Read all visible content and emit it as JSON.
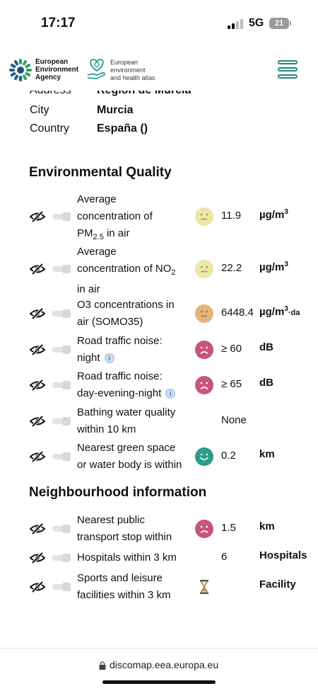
{
  "status_bar": {
    "time": "17:17",
    "network": "5G",
    "battery": "21"
  },
  "header": {
    "eea_logo_text": [
      "European",
      "Environment",
      "Agency"
    ],
    "atlas_logo_text": [
      "European",
      "environment",
      "and health atlas"
    ],
    "menu_icon": "hamburger-menu-icon"
  },
  "address": [
    {
      "label": "Address",
      "value": "Región de Murcia"
    },
    {
      "label": "City",
      "value": "Murcia"
    },
    {
      "label": "Country",
      "value": "España ()"
    }
  ],
  "sections": {
    "environmental": "Environmental Quality",
    "neighbourhood": "Neighbourhood information"
  },
  "environmental_rows": [
    {
      "name_lines": [
        "Average",
        "concentration of",
        "PM"
      ],
      "name_sub": "2.5",
      "name_tail": " in air",
      "face": "neutral",
      "face_color": "#ece7a6",
      "value": "11.9",
      "unit": "µg/m",
      "unit_sup": "3"
    },
    {
      "name_lines": [
        "Average",
        "concentration of NO"
      ],
      "name_sub": "2",
      "name_tail": "in air",
      "face": "neutral",
      "face_color": "#ece7a6",
      "value": "22.2",
      "unit": "µg/m",
      "unit_sup": "3"
    },
    {
      "name_lines": [
        "O3 concentrations in",
        "air (SOMO35)"
      ],
      "face": "neutral",
      "face_color": "#e8b27d",
      "value": "6448.4",
      "unit": "µg/m",
      "unit_sup": "3",
      "unit_tail": "·da"
    },
    {
      "name_lines": [
        "Road traffic noise:",
        "night"
      ],
      "info": true,
      "face": "sad",
      "face_color": "#c95577",
      "value": "≥ 60",
      "unit": "dB"
    },
    {
      "name_lines": [
        "Road traffic noise:",
        "day-evening-night"
      ],
      "info": true,
      "face": "sad",
      "face_color": "#c95577",
      "value": "≥ 65",
      "unit": "dB"
    },
    {
      "name_lines": [
        "Bathing water quality",
        "within 10 km"
      ],
      "face": "none",
      "value": "None",
      "unit": ""
    },
    {
      "name_lines": [
        "Nearest green space",
        "or water body is within"
      ],
      "face": "happy",
      "face_color": "#2a9d8a",
      "value": "0.2",
      "unit": "km"
    }
  ],
  "neighbourhood_rows": [
    {
      "name_lines": [
        "Nearest public",
        "transport stop within"
      ],
      "face": "sad",
      "face_color": "#c95577",
      "value": "1.5",
      "unit": "km"
    },
    {
      "name_lines": [
        "Hospitals within 3 km"
      ],
      "face": "none",
      "value": "6",
      "unit": "Hospitals"
    },
    {
      "name_lines": [
        "Sports and leisure",
        "facilities within 3 km"
      ],
      "face": "hourglass",
      "value": "",
      "unit": "Facility"
    }
  ],
  "url": "discomap.eea.europa.eu"
}
